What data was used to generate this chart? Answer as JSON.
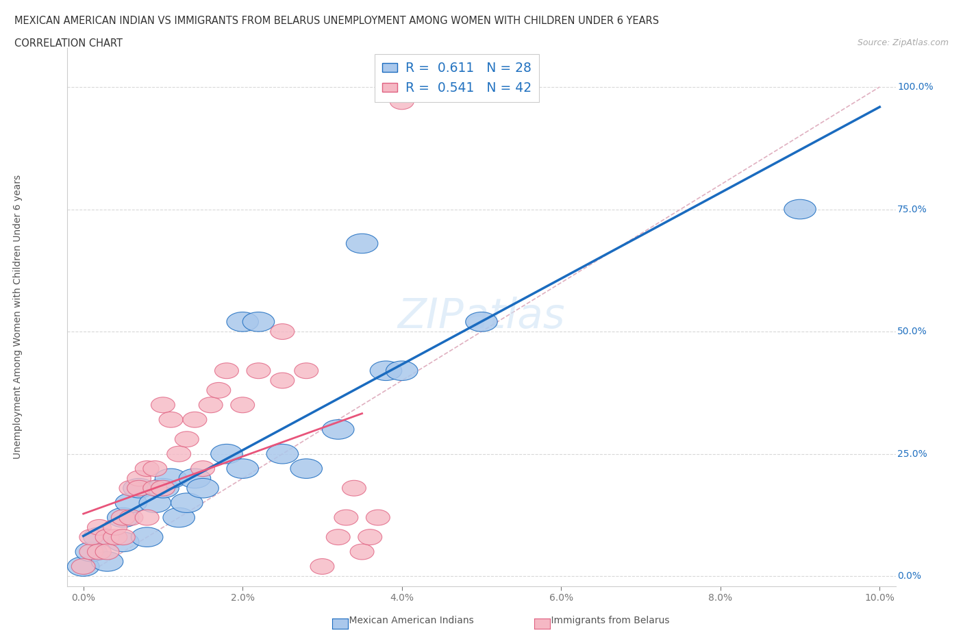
{
  "title_line1": "MEXICAN AMERICAN INDIAN VS IMMIGRANTS FROM BELARUS UNEMPLOYMENT AMONG WOMEN WITH CHILDREN UNDER 6 YEARS",
  "title_line2": "CORRELATION CHART",
  "source": "Source: ZipAtlas.com",
  "ylabel": "Unemployment Among Women with Children Under 6 years",
  "watermark": "ZIPatlas",
  "blue_R": 0.611,
  "blue_N": 28,
  "pink_R": 0.541,
  "pink_N": 42,
  "blue_color": "#aac8ec",
  "blue_line_color": "#1a6bbf",
  "pink_color": "#f5b8c4",
  "pink_line_color": "#e8547a",
  "diagonal_color": "#e0b0c0",
  "blue_x": [
    0.0,
    0.001,
    0.002,
    0.003,
    0.005,
    0.005,
    0.006,
    0.007,
    0.008,
    0.009,
    0.01,
    0.011,
    0.012,
    0.013,
    0.014,
    0.015,
    0.018,
    0.02,
    0.02,
    0.022,
    0.025,
    0.028,
    0.032,
    0.035,
    0.038,
    0.04,
    0.05,
    0.09
  ],
  "blue_y": [
    0.02,
    0.05,
    0.08,
    0.03,
    0.07,
    0.12,
    0.15,
    0.18,
    0.08,
    0.15,
    0.18,
    0.2,
    0.12,
    0.15,
    0.2,
    0.18,
    0.25,
    0.22,
    0.52,
    0.52,
    0.25,
    0.22,
    0.3,
    0.68,
    0.42,
    0.42,
    0.52,
    0.75
  ],
  "pink_x": [
    0.0,
    0.001,
    0.001,
    0.002,
    0.002,
    0.003,
    0.003,
    0.004,
    0.004,
    0.005,
    0.005,
    0.006,
    0.006,
    0.007,
    0.007,
    0.008,
    0.008,
    0.009,
    0.009,
    0.01,
    0.01,
    0.011,
    0.012,
    0.013,
    0.014,
    0.015,
    0.016,
    0.017,
    0.018,
    0.02,
    0.022,
    0.025,
    0.025,
    0.028,
    0.03,
    0.032,
    0.033,
    0.034,
    0.035,
    0.036,
    0.037,
    0.04
  ],
  "pink_y": [
    0.02,
    0.05,
    0.08,
    0.05,
    0.1,
    0.08,
    0.05,
    0.08,
    0.1,
    0.12,
    0.08,
    0.12,
    0.18,
    0.2,
    0.18,
    0.22,
    0.12,
    0.18,
    0.22,
    0.18,
    0.35,
    0.32,
    0.25,
    0.28,
    0.32,
    0.22,
    0.35,
    0.38,
    0.42,
    0.35,
    0.42,
    0.4,
    0.5,
    0.42,
    0.02,
    0.08,
    0.12,
    0.18,
    0.05,
    0.08,
    0.12,
    0.97
  ],
  "ytick_labels": [
    "0.0%",
    "25.0%",
    "50.0%",
    "75.0%",
    "100.0%"
  ],
  "ytick_values": [
    0.0,
    0.25,
    0.5,
    0.75,
    1.0
  ],
  "xtick_values": [
    0.0,
    0.02,
    0.04,
    0.06,
    0.08,
    0.1
  ],
  "xtick_labels": [
    "0.0%",
    "2.0%",
    "4.0%",
    "6.0%",
    "8.0%",
    "10.0%"
  ],
  "blue_legend_label": "Mexican American Indians",
  "pink_legend_label": "Immigrants from Belarus",
  "xlim": [
    -0.002,
    0.102
  ],
  "ylim": [
    -0.02,
    1.08
  ]
}
